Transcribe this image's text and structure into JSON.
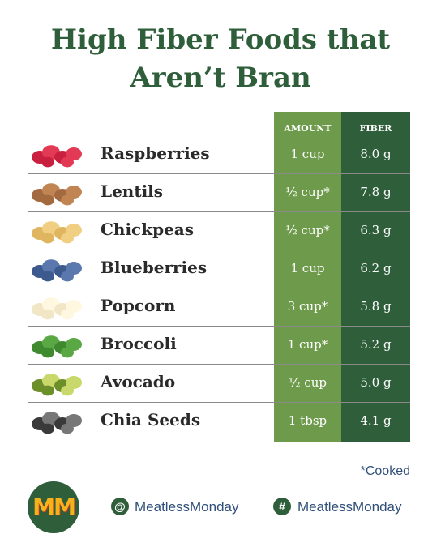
{
  "header": {
    "title": "High Fiber Foods that Aren’t Bran"
  },
  "table": {
    "columns": [
      "AMOUNT",
      "FIBER"
    ],
    "rows": [
      [
        "Raspberries",
        "1 cup",
        "8.0 g"
      ],
      [
        "Lentils",
        "½ cup*",
        "7.8 g"
      ],
      [
        "Chickpeas",
        "½ cup*",
        "6.3 g"
      ],
      [
        "Blueberries",
        "1 cup",
        "6.2 g"
      ],
      [
        "Popcorn",
        "3 cup*",
        "5.8 g"
      ],
      [
        "Broccoli",
        "1 cup*",
        "5.2 g"
      ],
      [
        "Avocado",
        "½ cup",
        "5.0 g"
      ],
      [
        "Chia Seeds",
        "1 tbsp",
        "4.1 g"
      ]
    ]
  },
  "footnote": "*Cooked",
  "footer": {
    "logo": "MM",
    "handles": [
      {
        "icon": "@",
        "text": "MeatlessMonday"
      },
      {
        "icon": "#",
        "text": "MeatlessMonday"
      }
    ]
  }
}
